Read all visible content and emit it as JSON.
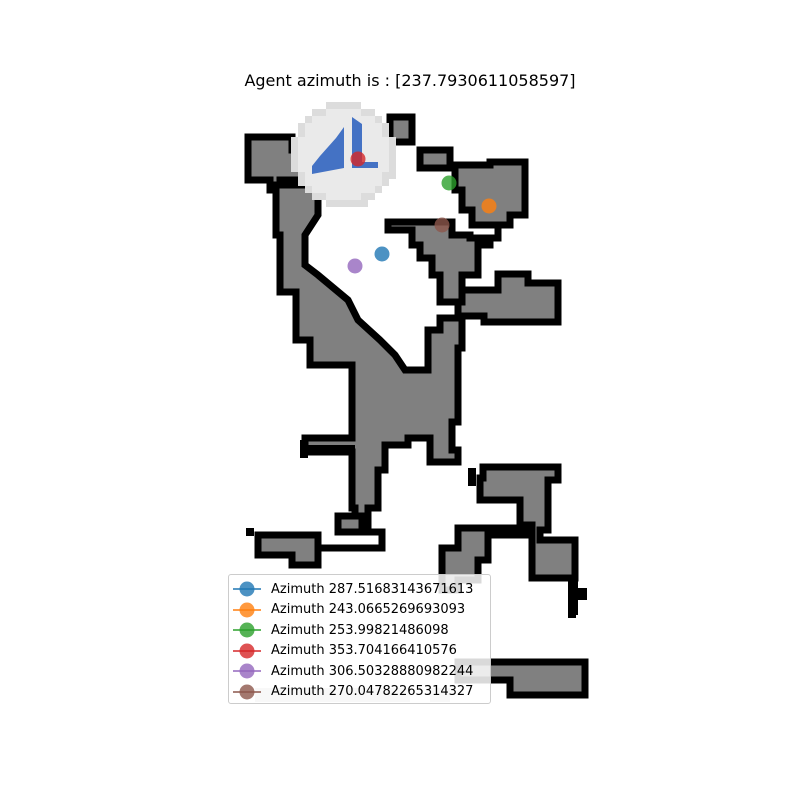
{
  "chart_data": {
    "type": "scatter",
    "title": "Agent azimuth is : [237.7930611058597]",
    "grid": false,
    "axes_visible": false,
    "legend_placement": "lower-left",
    "colors": {
      "free": "#808080",
      "wall": "#000000",
      "explored": "#cccccc",
      "view_cone": "#eaeaea",
      "agent_arrow": "#4472c4"
    },
    "agent": {
      "azimuth": 237.7930611058597
    },
    "series": [
      {
        "name": "Azimuth 287.51683143671613",
        "color": "#1f77b4"
      },
      {
        "name": "Azimuth 243.0665269693093",
        "color": "#ff7f0e"
      },
      {
        "name": "Azimuth 253.99821486098",
        "color": "#2ca02c"
      },
      {
        "name": "Azimuth 353.704166410576",
        "color": "#d62728"
      },
      {
        "name": "Azimuth 306.50328880982244",
        "color": "#9467bd"
      },
      {
        "name": "Azimuth 270.04782265314327",
        "color": "#8c564b"
      }
    ]
  }
}
